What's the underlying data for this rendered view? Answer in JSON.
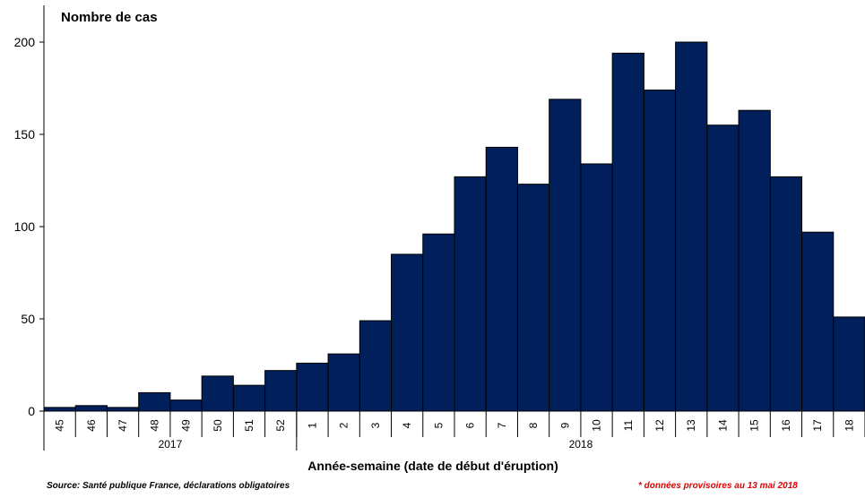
{
  "chart_data": {
    "type": "bar",
    "ylabel": "Nombre de cas",
    "xlabel": "Année-semaine (date de début d'éruption)",
    "ylim": [
      0,
      200
    ],
    "yticks": [
      0,
      50,
      100,
      150,
      200
    ],
    "grid": false,
    "colors": {
      "bar": "#001f5b",
      "note": "#e00000"
    },
    "categories": [
      "45",
      "46",
      "47",
      "48",
      "49",
      "50",
      "51",
      "52",
      "1",
      "2",
      "3",
      "4",
      "5",
      "6",
      "7",
      "8",
      "9",
      "10",
      "11",
      "12",
      "13",
      "14",
      "15",
      "16",
      "17",
      "18"
    ],
    "values": [
      2,
      3,
      2,
      10,
      6,
      19,
      14,
      22,
      26,
      31,
      49,
      85,
      96,
      127,
      143,
      123,
      169,
      134,
      194,
      174,
      200,
      155,
      163,
      127,
      97,
      51
    ],
    "years": [
      {
        "label": "2017",
        "count": 8
      },
      {
        "label": "2018",
        "count": 18
      }
    ]
  },
  "footer": {
    "source": "Source: Santé publique France, déclarations obligatoires",
    "note": "* données provisoires au  13 mai  2018"
  }
}
